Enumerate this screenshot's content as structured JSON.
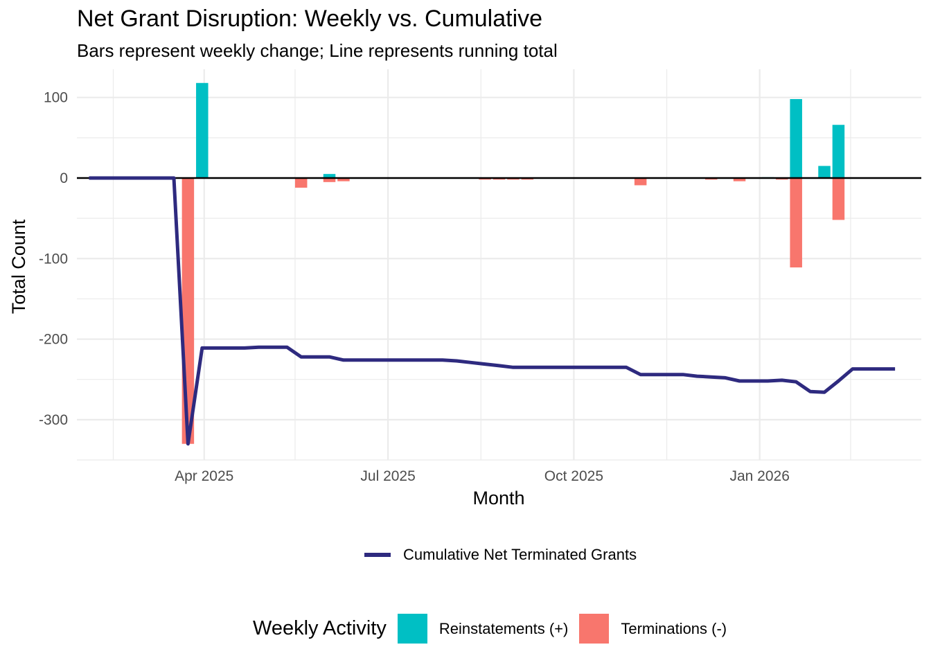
{
  "chart_data": {
    "type": "bar+line",
    "title": "Net Grant Disruption: Weekly vs. Cumulative",
    "subtitle": "Bars represent weekly change; Line represents running total",
    "xlabel": "Month",
    "ylabel": "Total Count",
    "ylim": [
      -350,
      135
    ],
    "y_ticks": [
      100,
      0,
      -100,
      -200,
      -300
    ],
    "y_tick_labels": [
      "100",
      "0",
      "-100",
      "-200",
      "-300"
    ],
    "x_range": [
      "2025-01-28",
      "2026-03-22"
    ],
    "x_ticks": [
      "2025-04-01",
      "2025-07-01",
      "2025-10-01",
      "2026-01-01"
    ],
    "x_tick_labels": [
      "Apr 2025",
      "Jul 2025",
      "Oct 2025",
      "Jan 2026"
    ],
    "x_minor_ticks": [
      "2025-02-15",
      "2025-05-16",
      "2025-08-16",
      "2025-11-16",
      "2026-02-15"
    ],
    "grid": true,
    "zero_line": true,
    "colors": {
      "reinstatements": "#00BFC4",
      "terminations": "#F8766D",
      "cumulative": "#2E2A7F"
    },
    "reinstatements": [
      {
        "date": "2025-03-31",
        "value": 118
      },
      {
        "date": "2025-06-02",
        "value": 5
      },
      {
        "date": "2026-01-05",
        "value": 1
      },
      {
        "date": "2026-01-19",
        "value": 98
      },
      {
        "date": "2026-02-02",
        "value": 15
      },
      {
        "date": "2026-02-09",
        "value": 66
      }
    ],
    "terminations": [
      {
        "date": "2025-03-24",
        "value": -330
      },
      {
        "date": "2025-05-19",
        "value": -12
      },
      {
        "date": "2025-06-02",
        "value": -5
      },
      {
        "date": "2025-06-09",
        "value": -4
      },
      {
        "date": "2025-08-18",
        "value": -2
      },
      {
        "date": "2025-08-25",
        "value": -2
      },
      {
        "date": "2025-09-01",
        "value": -2
      },
      {
        "date": "2025-09-08",
        "value": -2
      },
      {
        "date": "2025-11-03",
        "value": -9
      },
      {
        "date": "2025-12-08",
        "value": -2
      },
      {
        "date": "2025-12-22",
        "value": -4
      },
      {
        "date": "2026-01-12",
        "value": -2
      },
      {
        "date": "2026-01-19",
        "value": -111
      },
      {
        "date": "2026-02-09",
        "value": -52
      }
    ],
    "series": [
      {
        "name": "Cumulative Net Terminated Grants",
        "points": [
          [
            "2025-02-03",
            0
          ],
          [
            "2025-02-10",
            0
          ],
          [
            "2025-02-17",
            0
          ],
          [
            "2025-02-24",
            0
          ],
          [
            "2025-03-03",
            0
          ],
          [
            "2025-03-10",
            0
          ],
          [
            "2025-03-17",
            0
          ],
          [
            "2025-03-24",
            -330
          ],
          [
            "2025-03-31",
            -211
          ],
          [
            "2025-04-07",
            -211
          ],
          [
            "2025-04-14",
            -211
          ],
          [
            "2025-04-21",
            -211
          ],
          [
            "2025-04-28",
            -210
          ],
          [
            "2025-05-05",
            -210
          ],
          [
            "2025-05-12",
            -210
          ],
          [
            "2025-05-19",
            -222
          ],
          [
            "2025-05-26",
            -222
          ],
          [
            "2025-06-02",
            -222
          ],
          [
            "2025-06-09",
            -226
          ],
          [
            "2025-06-16",
            -226
          ],
          [
            "2025-06-23",
            -226
          ],
          [
            "2025-06-30",
            -226
          ],
          [
            "2025-07-07",
            -226
          ],
          [
            "2025-07-14",
            -226
          ],
          [
            "2025-07-21",
            -226
          ],
          [
            "2025-07-28",
            -226
          ],
          [
            "2025-08-04",
            -227
          ],
          [
            "2025-08-11",
            -229
          ],
          [
            "2025-08-18",
            -231
          ],
          [
            "2025-08-25",
            -233
          ],
          [
            "2025-09-01",
            -235
          ],
          [
            "2025-09-08",
            -235
          ],
          [
            "2025-09-15",
            -235
          ],
          [
            "2025-09-22",
            -235
          ],
          [
            "2025-09-29",
            -235
          ],
          [
            "2025-10-06",
            -235
          ],
          [
            "2025-10-13",
            -235
          ],
          [
            "2025-10-20",
            -235
          ],
          [
            "2025-10-27",
            -235
          ],
          [
            "2025-11-03",
            -244
          ],
          [
            "2025-11-10",
            -244
          ],
          [
            "2025-11-17",
            -244
          ],
          [
            "2025-11-24",
            -244
          ],
          [
            "2025-12-01",
            -246
          ],
          [
            "2025-12-08",
            -247
          ],
          [
            "2025-12-15",
            -248
          ],
          [
            "2025-12-22",
            -252
          ],
          [
            "2025-12-29",
            -252
          ],
          [
            "2026-01-05",
            -252
          ],
          [
            "2026-01-12",
            -251
          ],
          [
            "2026-01-19",
            -253
          ],
          [
            "2026-01-26",
            -265
          ],
          [
            "2026-02-02",
            -266
          ],
          [
            "2026-02-09",
            -252
          ],
          [
            "2026-02-16",
            -237
          ],
          [
            "2026-02-23",
            -237
          ],
          [
            "2026-03-02",
            -237
          ],
          [
            "2026-03-09",
            -237
          ]
        ]
      }
    ],
    "legend": {
      "line_label": "Cumulative Net Terminated Grants",
      "fill_title": "Weekly Activity",
      "fill_items": [
        "Reinstatements (+)",
        "Terminations (-)"
      ],
      "placement": "bottom"
    }
  }
}
